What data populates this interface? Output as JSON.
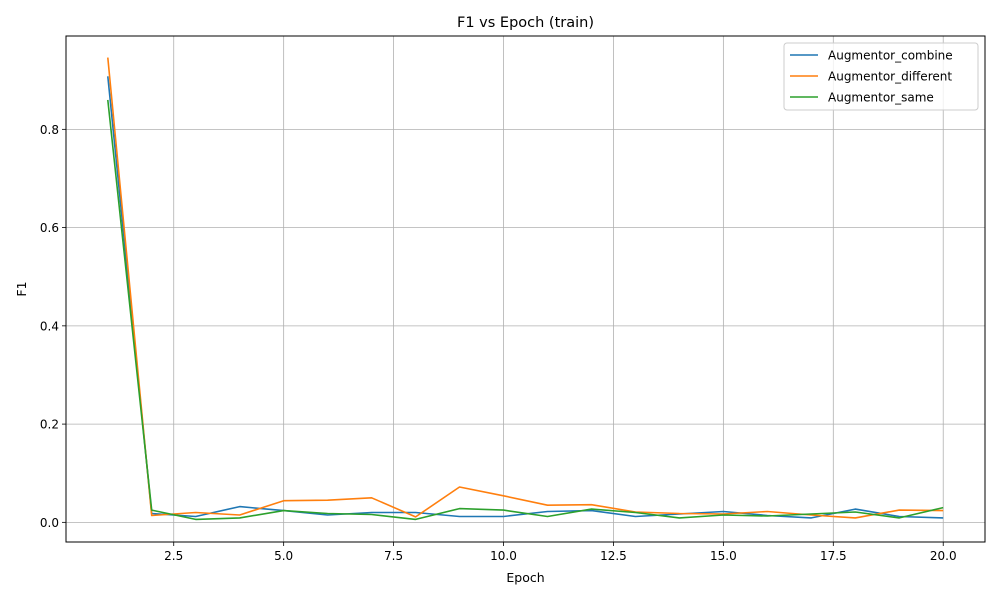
{
  "chart_data": {
    "type": "line",
    "title": "F1 vs Epoch (train)",
    "xlabel": "Epoch",
    "ylabel": "F1",
    "xlim": [
      0.05,
      20.95
    ],
    "ylim": [
      -0.04,
      0.99
    ],
    "x_ticks": [
      2.5,
      5.0,
      7.5,
      10.0,
      12.5,
      15.0,
      17.5,
      20.0
    ],
    "x_tick_labels": [
      "2.5",
      "5.0",
      "7.5",
      "10.0",
      "12.5",
      "15.0",
      "17.5",
      "20.0"
    ],
    "y_ticks": [
      0.0,
      0.2,
      0.4,
      0.6,
      0.8
    ],
    "y_tick_labels": [
      "0.0",
      "0.2",
      "0.4",
      "0.6",
      "0.8"
    ],
    "grid": true,
    "legend_position": "top-right",
    "x": [
      1,
      2,
      3,
      4,
      5,
      6,
      7,
      8,
      9,
      10,
      11,
      12,
      13,
      14,
      15,
      16,
      17,
      18,
      19,
      20
    ],
    "series": [
      {
        "name": "Augmentor_combine",
        "color": "#1f77b4",
        "values": [
          0.908,
          0.018,
          0.012,
          0.032,
          0.024,
          0.015,
          0.02,
          0.02,
          0.012,
          0.012,
          0.022,
          0.024,
          0.012,
          0.017,
          0.022,
          0.014,
          0.009,
          0.027,
          0.012,
          0.009
        ]
      },
      {
        "name": "Augmentor_different",
        "color": "#ff7f0e",
        "values": [
          0.946,
          0.014,
          0.02,
          0.015,
          0.044,
          0.045,
          0.05,
          0.011,
          0.072,
          0.054,
          0.035,
          0.036,
          0.021,
          0.018,
          0.017,
          0.022,
          0.015,
          0.009,
          0.025,
          0.024
        ]
      },
      {
        "name": "Augmentor_same",
        "color": "#2ca02c",
        "values": [
          0.86,
          0.025,
          0.006,
          0.009,
          0.024,
          0.018,
          0.016,
          0.006,
          0.028,
          0.025,
          0.012,
          0.027,
          0.02,
          0.009,
          0.015,
          0.013,
          0.017,
          0.021,
          0.009,
          0.03
        ]
      }
    ]
  }
}
